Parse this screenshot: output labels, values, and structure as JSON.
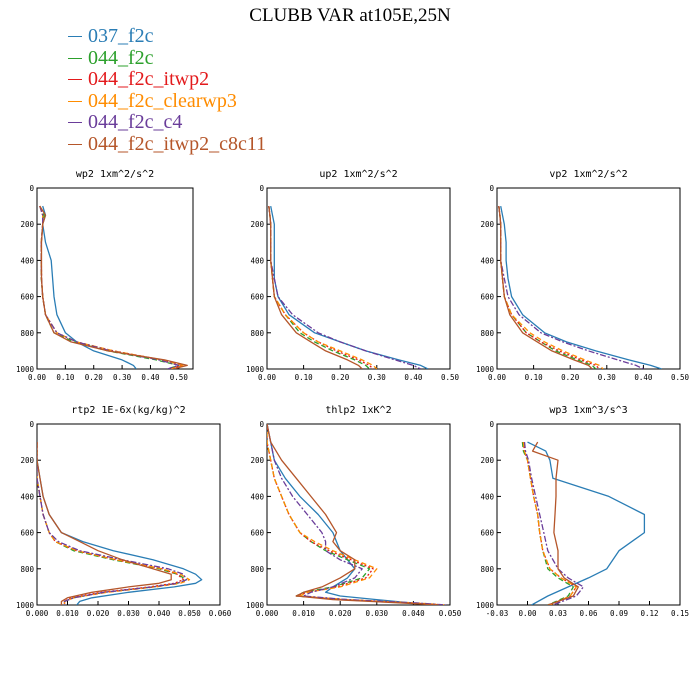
{
  "title": "CLUBB VAR at105E,25N",
  "legend": [
    {
      "name": "037_f2c",
      "color": "#2a7db5",
      "dash": "solid"
    },
    {
      "name": "044_f2c",
      "color": "#2ca02c",
      "dash": "dash"
    },
    {
      "name": "044_f2c_itwp2",
      "color": "#e31a1c",
      "dash": "dot"
    },
    {
      "name": "044_f2c_clearwp3",
      "color": "#ff8c00",
      "dash": "dash"
    },
    {
      "name": "044_f2c_c4",
      "color": "#6a3d9a",
      "dash": "dashdot"
    },
    {
      "name": "044_f2c_itwp2_c8c11",
      "color": "#b5562a",
      "dash": "solid"
    }
  ],
  "chart_data": [
    {
      "type": "line",
      "title": "wp2  1xm^2/s^2",
      "xlim": [
        0,
        0.55
      ],
      "xticks": [
        "0.00",
        "0.10",
        "0.20",
        "0.30",
        "0.40",
        "0.50"
      ],
      "xtick_values": [
        0,
        0.1,
        0.2,
        0.3,
        0.4,
        0.5
      ],
      "ylim": [
        0,
        1000
      ],
      "yticks": [
        "0",
        "200",
        "400",
        "600",
        "800",
        "1000"
      ],
      "y": [
        100,
        150,
        200,
        300,
        400,
        500,
        600,
        700,
        800,
        850,
        900,
        950,
        980,
        1000
      ],
      "series": [
        {
          "name": "037_f2c",
          "values": [
            0.02,
            0.03,
            0.02,
            0.03,
            0.05,
            0.055,
            0.06,
            0.07,
            0.1,
            0.14,
            0.2,
            0.3,
            0.34,
            0.35
          ]
        },
        {
          "name": "044_f2c",
          "values": [
            0.01,
            0.025,
            0.02,
            0.015,
            0.015,
            0.015,
            0.02,
            0.03,
            0.06,
            0.13,
            0.25,
            0.42,
            0.5,
            0.46
          ]
        },
        {
          "name": "044_f2c_itwp2",
          "values": [
            0.01,
            0.02,
            0.02,
            0.015,
            0.015,
            0.016,
            0.02,
            0.03,
            0.07,
            0.14,
            0.27,
            0.44,
            0.51,
            0.47
          ]
        },
        {
          "name": "044_f2c_clearwp3",
          "values": [
            0.01,
            0.02,
            0.02,
            0.015,
            0.015,
            0.016,
            0.02,
            0.03,
            0.07,
            0.14,
            0.27,
            0.44,
            0.52,
            0.47
          ]
        },
        {
          "name": "044_f2c_c4",
          "values": [
            0.01,
            0.02,
            0.02,
            0.015,
            0.015,
            0.016,
            0.02,
            0.03,
            0.07,
            0.14,
            0.26,
            0.43,
            0.5,
            0.46
          ]
        },
        {
          "name": "044_f2c_itwp2_c8c11",
          "values": [
            0.01,
            0.03,
            0.02,
            0.016,
            0.016,
            0.016,
            0.02,
            0.03,
            0.06,
            0.12,
            0.25,
            0.45,
            0.53,
            0.48
          ]
        }
      ]
    },
    {
      "type": "line",
      "title": "up2  1xm^2/s^2",
      "xlim": [
        0,
        0.5
      ],
      "xticks": [
        "0.00",
        "0.10",
        "0.20",
        "0.30",
        "0.40",
        "0.50"
      ],
      "xtick_values": [
        0,
        0.1,
        0.2,
        0.3,
        0.4,
        0.5
      ],
      "ylim": [
        0,
        1000
      ],
      "yticks": [
        "0",
        "200",
        "400",
        "600",
        "800",
        "1000"
      ],
      "y": [
        100,
        150,
        200,
        300,
        400,
        500,
        600,
        700,
        800,
        850,
        900,
        950,
        980,
        1000
      ],
      "series": [
        {
          "name": "037_f2c",
          "values": [
            0.01,
            0.015,
            0.02,
            0.02,
            0.02,
            0.02,
            0.03,
            0.06,
            0.13,
            0.2,
            0.27,
            0.36,
            0.42,
            0.44
          ]
        },
        {
          "name": "044_f2c",
          "values": [
            0.005,
            0.008,
            0.01,
            0.01,
            0.01,
            0.015,
            0.02,
            0.05,
            0.09,
            0.13,
            0.18,
            0.24,
            0.27,
            0.28
          ]
        },
        {
          "name": "044_f2c_itwp2",
          "values": [
            0.005,
            0.008,
            0.01,
            0.01,
            0.01,
            0.015,
            0.02,
            0.05,
            0.1,
            0.14,
            0.19,
            0.25,
            0.28,
            0.29
          ]
        },
        {
          "name": "044_f2c_clearwp3",
          "values": [
            0.005,
            0.008,
            0.01,
            0.01,
            0.01,
            0.015,
            0.02,
            0.05,
            0.1,
            0.14,
            0.2,
            0.26,
            0.29,
            0.3
          ]
        },
        {
          "name": "044_f2c_c4",
          "values": [
            0.005,
            0.008,
            0.01,
            0.01,
            0.01,
            0.02,
            0.03,
            0.07,
            0.14,
            0.2,
            0.27,
            0.35,
            0.4,
            0.42
          ]
        },
        {
          "name": "044_f2c_itwp2_c8c11",
          "values": [
            0.005,
            0.008,
            0.01,
            0.01,
            0.01,
            0.015,
            0.02,
            0.04,
            0.08,
            0.12,
            0.16,
            0.22,
            0.25,
            0.26
          ]
        }
      ]
    },
    {
      "type": "line",
      "title": "vp2  1xm^2/s^2",
      "xlim": [
        0,
        0.5
      ],
      "xticks": [
        "0.00",
        "0.10",
        "0.20",
        "0.30",
        "0.40",
        "0.50"
      ],
      "xtick_values": [
        0,
        0.1,
        0.2,
        0.3,
        0.4,
        0.5
      ],
      "ylim": [
        0,
        1000
      ],
      "yticks": [
        "0",
        "200",
        "400",
        "600",
        "800",
        "1000"
      ],
      "y": [
        100,
        150,
        200,
        300,
        400,
        500,
        600,
        700,
        800,
        850,
        900,
        950,
        980,
        1000
      ],
      "series": [
        {
          "name": "037_f2c",
          "values": [
            0.01,
            0.015,
            0.02,
            0.025,
            0.025,
            0.03,
            0.04,
            0.07,
            0.13,
            0.19,
            0.27,
            0.36,
            0.42,
            0.45
          ]
        },
        {
          "name": "044_f2c",
          "values": [
            0.005,
            0.008,
            0.01,
            0.01,
            0.01,
            0.015,
            0.02,
            0.04,
            0.08,
            0.12,
            0.16,
            0.22,
            0.26,
            0.27
          ]
        },
        {
          "name": "044_f2c_itwp2",
          "values": [
            0.005,
            0.008,
            0.01,
            0.01,
            0.01,
            0.015,
            0.02,
            0.04,
            0.08,
            0.12,
            0.17,
            0.23,
            0.27,
            0.28
          ]
        },
        {
          "name": "044_f2c_clearwp3",
          "values": [
            0.005,
            0.008,
            0.01,
            0.01,
            0.01,
            0.015,
            0.02,
            0.04,
            0.09,
            0.13,
            0.18,
            0.24,
            0.28,
            0.29
          ]
        },
        {
          "name": "044_f2c_c4",
          "values": [
            0.005,
            0.008,
            0.01,
            0.01,
            0.01,
            0.02,
            0.03,
            0.06,
            0.12,
            0.18,
            0.25,
            0.33,
            0.38,
            0.4
          ]
        },
        {
          "name": "044_f2c_itwp2_c8c11",
          "values": [
            0.005,
            0.008,
            0.01,
            0.01,
            0.01,
            0.015,
            0.02,
            0.035,
            0.07,
            0.11,
            0.15,
            0.21,
            0.25,
            0.26
          ]
        }
      ]
    },
    {
      "type": "line",
      "title": "rtp2  1E-6x(kg/kg)^2",
      "xlim": [
        0,
        0.06
      ],
      "xticks": [
        "0.000",
        "0.010",
        "0.020",
        "0.030",
        "0.040",
        "0.050",
        "0.060"
      ],
      "xtick_values": [
        0,
        0.01,
        0.02,
        0.03,
        0.04,
        0.05,
        0.06
      ],
      "ylim": [
        0,
        1000
      ],
      "yticks": [
        "0",
        "200",
        "400",
        "600",
        "800",
        "1000"
      ],
      "y": [
        100,
        200,
        300,
        400,
        500,
        600,
        650,
        700,
        750,
        800,
        830,
        860,
        880,
        900,
        930,
        960,
        980,
        1000
      ],
      "series": [
        {
          "name": "037_f2c",
          "values": [
            0,
            0,
            0.001,
            0.002,
            0.004,
            0.008,
            0.015,
            0.025,
            0.038,
            0.048,
            0.052,
            0.054,
            0.052,
            0.045,
            0.03,
            0.018,
            0.014,
            0.013
          ]
        },
        {
          "name": "044_f2c",
          "values": [
            0,
            0,
            0,
            0.001,
            0.002,
            0.004,
            0.006,
            0.012,
            0.025,
            0.04,
            0.046,
            0.049,
            0.046,
            0.038,
            0.022,
            0.012,
            0.009,
            0.009
          ]
        },
        {
          "name": "044_f2c_itwp2",
          "values": [
            0,
            0,
            0,
            0.001,
            0.002,
            0.004,
            0.006,
            0.013,
            0.026,
            0.041,
            0.046,
            0.048,
            0.045,
            0.037,
            0.021,
            0.011,
            0.009,
            0.009
          ]
        },
        {
          "name": "044_f2c_clearwp3",
          "values": [
            0,
            0,
            0,
            0.001,
            0.002,
            0.004,
            0.006,
            0.013,
            0.026,
            0.041,
            0.047,
            0.05,
            0.047,
            0.039,
            0.023,
            0.012,
            0.009,
            0.009
          ]
        },
        {
          "name": "044_f2c_c4",
          "values": [
            0,
            0,
            0,
            0.001,
            0.002,
            0.004,
            0.007,
            0.014,
            0.028,
            0.043,
            0.048,
            0.049,
            0.046,
            0.038,
            0.022,
            0.012,
            0.009,
            0.009
          ]
        },
        {
          "name": "044_f2c_itwp2_c8c11",
          "values": [
            0,
            0,
            0.001,
            0.002,
            0.004,
            0.008,
            0.014,
            0.02,
            0.028,
            0.038,
            0.044,
            0.044,
            0.04,
            0.03,
            0.018,
            0.01,
            0.008,
            0.008
          ]
        }
      ]
    },
    {
      "type": "line",
      "title": "thlp2  1xK^2",
      "xlim": [
        0,
        0.05
      ],
      "xticks": [
        "0.000",
        "0.010",
        "0.020",
        "0.030",
        "0.040",
        "0.050"
      ],
      "xtick_values": [
        0,
        0.01,
        0.02,
        0.03,
        0.04,
        0.05
      ],
      "ylim": [
        0,
        1000
      ],
      "yticks": [
        "0",
        "200",
        "400",
        "600",
        "800",
        "1000"
      ],
      "y": [
        0,
        100,
        200,
        300,
        400,
        500,
        600,
        650,
        700,
        750,
        800,
        850,
        900,
        930,
        950,
        970,
        990,
        1000
      ],
      "series": [
        {
          "name": "037_f2c",
          "values": [
            0,
            0.001,
            0.002,
            0.005,
            0.009,
            0.014,
            0.018,
            0.019,
            0.02,
            0.022,
            0.024,
            0.022,
            0.018,
            0.016,
            0.02,
            0.03,
            0.04,
            0.048
          ]
        },
        {
          "name": "044_f2c",
          "values": [
            0,
            0,
            0.001,
            0.002,
            0.004,
            0.006,
            0.009,
            0.012,
            0.016,
            0.022,
            0.028,
            0.026,
            0.018,
            0.01,
            0.008,
            0.02,
            0.04,
            0.048
          ]
        },
        {
          "name": "044_f2c_itwp2",
          "values": [
            0,
            0,
            0.001,
            0.002,
            0.004,
            0.006,
            0.009,
            0.012,
            0.017,
            0.023,
            0.029,
            0.027,
            0.019,
            0.011,
            0.008,
            0.02,
            0.04,
            0.048
          ]
        },
        {
          "name": "044_f2c_clearwp3",
          "values": [
            0,
            0,
            0.001,
            0.002,
            0.004,
            0.006,
            0.009,
            0.013,
            0.018,
            0.024,
            0.03,
            0.028,
            0.02,
            0.011,
            0.009,
            0.022,
            0.042,
            0.049
          ]
        },
        {
          "name": "044_f2c_c4",
          "values": [
            0,
            0.001,
            0.002,
            0.004,
            0.007,
            0.011,
            0.015,
            0.016,
            0.016,
            0.02,
            0.026,
            0.024,
            0.018,
            0.012,
            0.01,
            0.022,
            0.042,
            0.049
          ]
        },
        {
          "name": "044_f2c_itwp2_c8c11",
          "values": [
            0,
            0.001,
            0.004,
            0.008,
            0.012,
            0.016,
            0.019,
            0.018,
            0.02,
            0.024,
            0.024,
            0.02,
            0.015,
            0.01,
            0.008,
            0.018,
            0.038,
            0.047
          ]
        }
      ]
    },
    {
      "type": "line",
      "title": "wp3  1xm^3/s^3",
      "xlim": [
        -0.03,
        0.15
      ],
      "xticks": [
        "-0.03",
        "0.00",
        "0.03",
        "0.06",
        "0.09",
        "0.12",
        "0.15"
      ],
      "xtick_values": [
        -0.03,
        0,
        0.03,
        0.06,
        0.09,
        0.12,
        0.15
      ],
      "ylim": [
        0,
        1000
      ],
      "yticks": [
        "0",
        "200",
        "400",
        "600",
        "800",
        "1000"
      ],
      "y": [
        100,
        150,
        200,
        300,
        400,
        500,
        600,
        700,
        800,
        850,
        900,
        950,
        1000
      ],
      "series": [
        {
          "name": "037_f2c",
          "values": [
            0,
            0.018,
            0.022,
            0.025,
            0.08,
            0.115,
            0.115,
            0.09,
            0.078,
            0.06,
            0.04,
            0.02,
            0.004
          ]
        },
        {
          "name": "044_f2c",
          "values": [
            -0.005,
            -0.004,
            0,
            0.003,
            0.006,
            0.01,
            0.012,
            0.015,
            0.02,
            0.03,
            0.045,
            0.04,
            0.02
          ]
        },
        {
          "name": "044_f2c_itwp2",
          "values": [
            -0.004,
            -0.003,
            0,
            0.003,
            0.006,
            0.01,
            0.012,
            0.015,
            0.022,
            0.033,
            0.048,
            0.042,
            0.022
          ]
        },
        {
          "name": "044_f2c_clearwp3",
          "values": [
            -0.004,
            -0.003,
            0,
            0.003,
            0.006,
            0.01,
            0.012,
            0.015,
            0.022,
            0.033,
            0.048,
            0.042,
            0.022
          ]
        },
        {
          "name": "044_f2c_c4",
          "values": [
            -0.003,
            -0.002,
            0.001,
            0.004,
            0.008,
            0.012,
            0.016,
            0.02,
            0.03,
            0.04,
            0.055,
            0.048,
            0.025
          ]
        },
        {
          "name": "044_f2c_itwp2_c8c11",
          "values": [
            0.01,
            0.005,
            0.03,
            0.028,
            0.028,
            0.027,
            0.026,
            0.03,
            0.03,
            0.036,
            0.05,
            0.045,
            0.02
          ]
        }
      ]
    }
  ]
}
